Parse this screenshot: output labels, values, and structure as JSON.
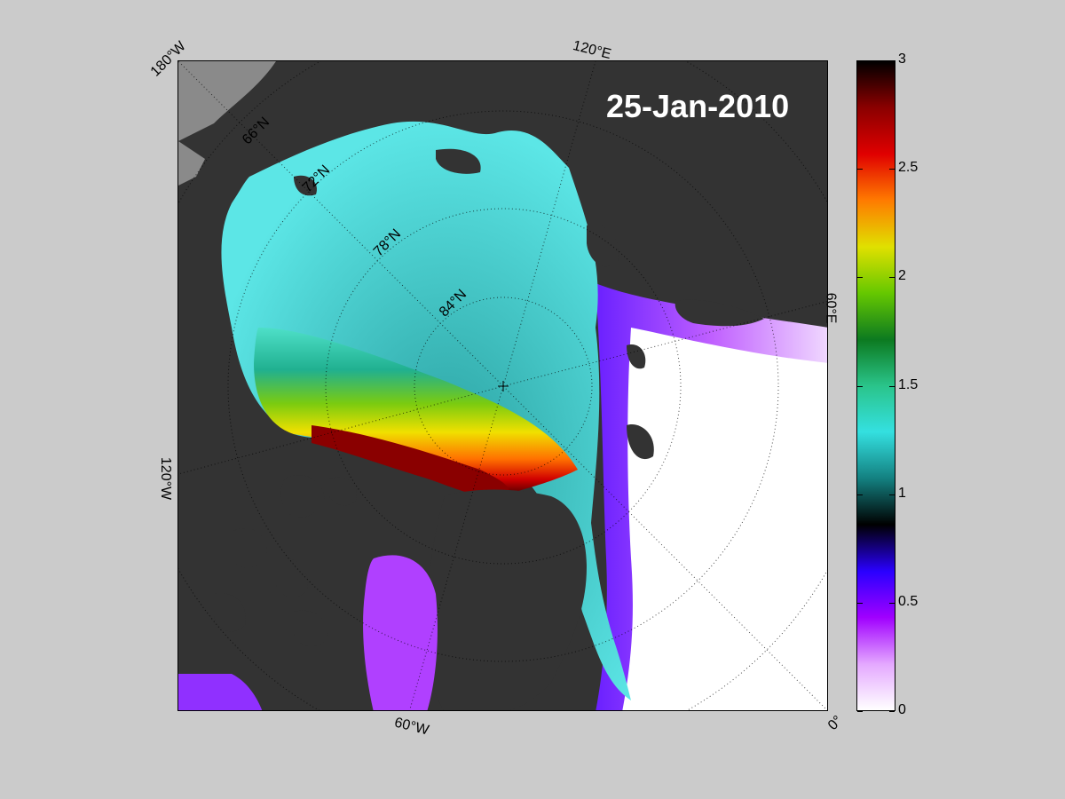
{
  "map": {
    "date_text": "25-Jan-2010",
    "lon_labels": {
      "w180": "180°W",
      "e120": "120°E",
      "e60": "60°E",
      "w120": "120°W",
      "w60": "60°W",
      "zero": "0°"
    },
    "lat_labels": {
      "n66": "66°N",
      "n72": "72°N",
      "n78": "78°N",
      "n84": "84°N"
    },
    "colors": {
      "land": "#333333",
      "open_ocean": "#ffffff",
      "figure_bg": "#cbcbcb",
      "date_text": "#ffffff"
    }
  },
  "colorbar": {
    "min": 0,
    "max": 3,
    "ticks": [
      "0",
      "0.5",
      "1",
      "1.5",
      "2",
      "2.5",
      "3"
    ],
    "tick_values": [
      0,
      0.5,
      1,
      1.5,
      2,
      2.5,
      3
    ],
    "colors": [
      "#ffffff",
      "#e4a8ff",
      "#a000ff",
      "#2a00ff",
      "#000000",
      "#138080",
      "#34e0e0",
      "#2ac48a",
      "#0c7a20",
      "#66c800",
      "#e0e000",
      "#ff7a00",
      "#e00000",
      "#8a0000",
      "#000000"
    ]
  }
}
